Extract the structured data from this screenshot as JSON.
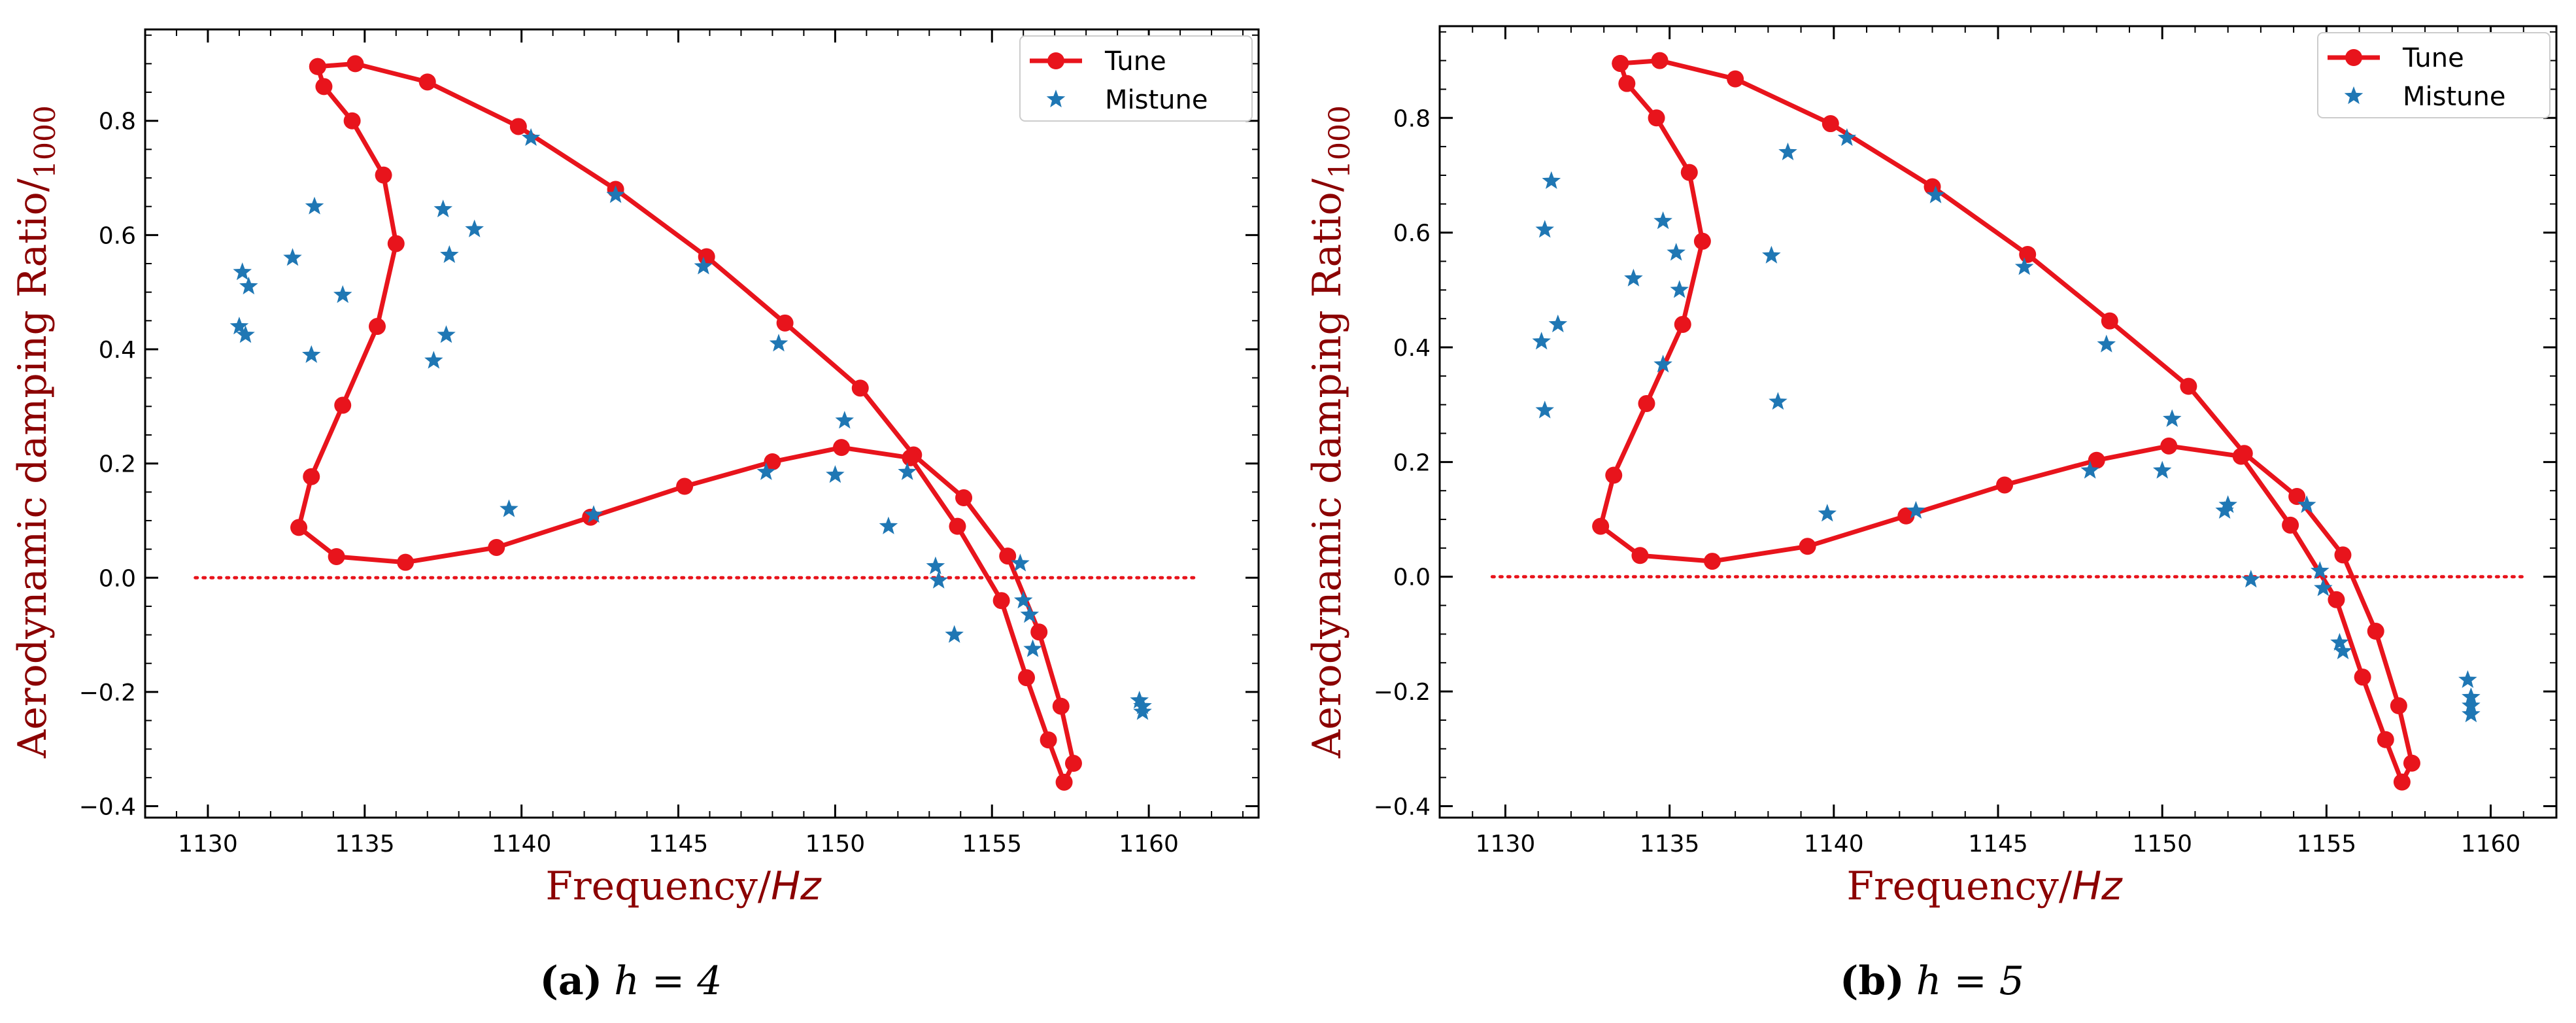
{
  "chart_data": [
    {
      "type": "line+scatter",
      "panel": "a",
      "caption_letter": "(a)",
      "caption_text": "h = 4",
      "xlabel": "Frequency/",
      "xlabel_unit": "Hz",
      "ylabel": "Aerodynamic damping Ratio/",
      "ylabel_sub": "1000",
      "xlim": [
        1128,
        1163.5
      ],
      "ylim": [
        -0.42,
        0.96
      ],
      "xticks": [
        1130,
        1135,
        1140,
        1145,
        1150,
        1155,
        1160
      ],
      "yticks": [
        -0.4,
        -0.2,
        0.0,
        0.2,
        0.4,
        0.6,
        0.8
      ],
      "xtick_labels": [
        "1130",
        "1135",
        "1140",
        "1145",
        "1150",
        "1155",
        "1160"
      ],
      "ytick_labels": [
        "−0.4",
        "−0.2",
        "0.0",
        "0.2",
        "0.4",
        "0.6",
        "0.8"
      ],
      "zero_line": {
        "y": 0,
        "x_range": [
          1129.6,
          1161.5
        ],
        "color": "#e8141c",
        "style": "dotted"
      },
      "legend": {
        "position": "top-right",
        "entries": [
          "Tune",
          "Mistune"
        ]
      },
      "series": [
        {
          "name": "Tune",
          "style": "line-marker",
          "color": "#e8141c",
          "x": [
            1133.5,
            1134.7,
            1137.0,
            1139.9,
            1143.0,
            1145.9,
            1148.4,
            1150.8,
            1152.5,
            1154.1,
            1155.5,
            1156.5,
            1157.2,
            1157.6,
            1157.3,
            1156.8,
            1156.1,
            1155.3,
            1153.9,
            1152.4,
            1150.2,
            1148.0,
            1145.2,
            1142.2,
            1139.2,
            1136.3,
            1134.1,
            1132.9,
            1133.3,
            1134.3,
            1135.4,
            1136.0,
            1135.6,
            1134.6,
            1133.7,
            1133.5
          ],
          "y": [
            0.895,
            0.9,
            0.868,
            0.79,
            0.68,
            0.562,
            0.446,
            0.332,
            0.215,
            0.14,
            0.038,
            -0.095,
            -0.225,
            -0.325,
            -0.358,
            -0.284,
            -0.175,
            -0.04,
            0.09,
            0.21,
            0.228,
            0.203,
            0.16,
            0.106,
            0.053,
            0.027,
            0.037,
            0.088,
            0.177,
            0.302,
            0.44,
            0.585,
            0.705,
            0.8,
            0.86,
            0.895
          ]
        },
        {
          "name": "Mistune",
          "style": "scatter-star",
          "color": "#1f77b4",
          "x": [
            1131.1,
            1131.3,
            1131.0,
            1131.2,
            1132.7,
            1133.3,
            1133.4,
            1134.3,
            1137.2,
            1137.6,
            1137.5,
            1137.7,
            1138.5,
            1139.6,
            1140.3,
            1142.3,
            1143.0,
            1145.8,
            1147.8,
            1148.2,
            1150.0,
            1150.3,
            1151.7,
            1152.3,
            1153.2,
            1153.3,
            1153.8,
            1155.9,
            1156.0,
            1156.2,
            1156.3,
            1159.7,
            1159.8,
            1159.8
          ],
          "y": [
            0.535,
            0.51,
            0.44,
            0.425,
            0.56,
            0.39,
            0.65,
            0.495,
            0.38,
            0.425,
            0.645,
            0.565,
            0.61,
            0.12,
            0.77,
            0.11,
            0.67,
            0.545,
            0.185,
            0.41,
            0.18,
            0.275,
            0.09,
            0.185,
            0.02,
            -0.005,
            -0.1,
            0.025,
            -0.04,
            -0.065,
            -0.125,
            -0.215,
            -0.225,
            -0.235
          ]
        }
      ]
    },
    {
      "type": "line+scatter",
      "panel": "b",
      "caption_letter": "(b)",
      "caption_text": "h = 5",
      "xlabel": "Frequency/",
      "xlabel_unit": "Hz",
      "ylabel": "Aerodynamic damping Ratio/",
      "ylabel_sub": "1000",
      "xlim": [
        1128,
        1162
      ],
      "ylim": [
        -0.42,
        0.96
      ],
      "xticks": [
        1130,
        1135,
        1140,
        1145,
        1150,
        1155,
        1160
      ],
      "yticks": [
        -0.4,
        -0.2,
        0.0,
        0.2,
        0.4,
        0.6,
        0.8
      ],
      "xtick_labels": [
        "1130",
        "1135",
        "1140",
        "1145",
        "1150",
        "1155",
        "1160"
      ],
      "ytick_labels": [
        "−0.4",
        "−0.2",
        "0.0",
        "0.2",
        "0.4",
        "0.6",
        "0.8"
      ],
      "zero_line": {
        "y": 0,
        "x_range": [
          1129.6,
          1161.0
        ],
        "color": "#e8141c",
        "style": "dotted"
      },
      "legend": {
        "position": "top-right",
        "entries": [
          "Tune",
          "Mistune"
        ]
      },
      "series": [
        {
          "name": "Tune",
          "style": "line-marker",
          "color": "#e8141c",
          "x": [
            1133.5,
            1134.7,
            1137.0,
            1139.9,
            1143.0,
            1145.9,
            1148.4,
            1150.8,
            1152.5,
            1154.1,
            1155.5,
            1156.5,
            1157.2,
            1157.6,
            1157.3,
            1156.8,
            1156.1,
            1155.3,
            1153.9,
            1152.4,
            1150.2,
            1148.0,
            1145.2,
            1142.2,
            1139.2,
            1136.3,
            1134.1,
            1132.9,
            1133.3,
            1134.3,
            1135.4,
            1136.0,
            1135.6,
            1134.6,
            1133.7,
            1133.5
          ],
          "y": [
            0.895,
            0.9,
            0.868,
            0.79,
            0.68,
            0.562,
            0.446,
            0.332,
            0.215,
            0.14,
            0.038,
            -0.095,
            -0.225,
            -0.325,
            -0.358,
            -0.284,
            -0.175,
            -0.04,
            0.09,
            0.21,
            0.228,
            0.203,
            0.16,
            0.106,
            0.053,
            0.027,
            0.037,
            0.088,
            0.177,
            0.302,
            0.44,
            0.585,
            0.705,
            0.8,
            0.86,
            0.895
          ]
        },
        {
          "name": "Mistune",
          "style": "scatter-star",
          "color": "#1f77b4",
          "x": [
            1131.4,
            1131.2,
            1131.6,
            1131.1,
            1131.2,
            1133.9,
            1134.8,
            1135.2,
            1135.3,
            1134.8,
            1138.1,
            1138.3,
            1138.6,
            1139.8,
            1140.4,
            1142.5,
            1143.1,
            1145.8,
            1147.8,
            1148.3,
            1150.0,
            1150.3,
            1151.9,
            1152.0,
            1152.7,
            1154.4,
            1154.8,
            1154.9,
            1155.4,
            1155.5,
            1159.3,
            1159.4,
            1159.4,
            1159.4
          ],
          "y": [
            0.69,
            0.605,
            0.44,
            0.41,
            0.29,
            0.52,
            0.62,
            0.565,
            0.5,
            0.37,
            0.56,
            0.305,
            0.74,
            0.11,
            0.765,
            0.115,
            0.665,
            0.54,
            0.185,
            0.405,
            0.185,
            0.275,
            0.115,
            0.125,
            -0.005,
            0.125,
            0.01,
            -0.02,
            -0.115,
            -0.13,
            -0.18,
            -0.21,
            -0.225,
            -0.24
          ]
        }
      ]
    }
  ]
}
